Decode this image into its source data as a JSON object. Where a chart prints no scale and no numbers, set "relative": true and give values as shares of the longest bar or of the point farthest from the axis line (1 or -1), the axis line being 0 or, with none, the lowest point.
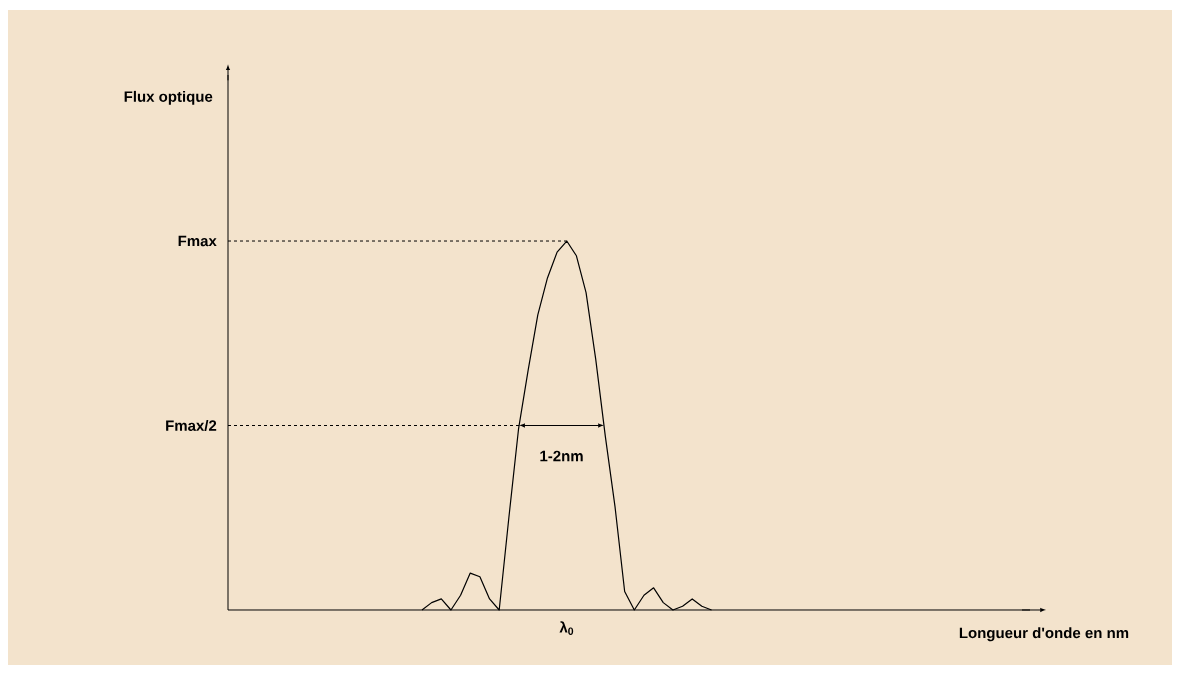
{
  "chart_data": {
    "type": "line",
    "relative": true,
    "categories": [
      null,
      null,
      null,
      null,
      null,
      null,
      null,
      null,
      null,
      null,
      null,
      null,
      null,
      null,
      null,
      null,
      null,
      null,
      null,
      null,
      null,
      null,
      null,
      null,
      null,
      null,
      null,
      null,
      null,
      null,
      null
    ],
    "series": [
      {
        "color": "#000000",
        "values": [
          0,
          0.02,
          0.03,
          0,
          0.04,
          0.1,
          0.09,
          0.03,
          0,
          0.25,
          0.49,
          0.65,
          0.8,
          0.9,
          0.97,
          1.0,
          0.96,
          0.86,
          0.68,
          0.47,
          0.28,
          0.05,
          0,
          0.04,
          0.06,
          0.02,
          0,
          0.01,
          0.03,
          0.01,
          0
        ]
      }
    ],
    "ref_lines": [
      {
        "axis": "y",
        "value": 1,
        "line_style": "dashed",
        "label": "Fmax"
      },
      {
        "axis": "y",
        "value": 0.5,
        "line_style": "dashed",
        "label": "Fmax/2"
      }
    ],
    "annotations": [
      "1-2nm",
      "λ$_{0}$",
      "Flux optique",
      "Longueur d'onde en nm"
    ],
    "marker": "none"
  }
}
